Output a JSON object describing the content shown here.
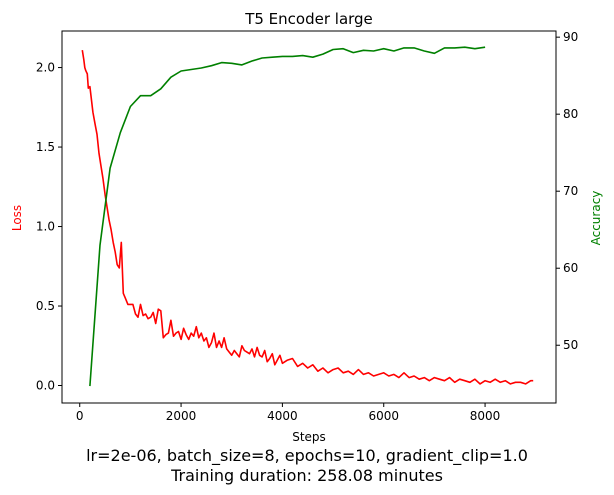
{
  "chart_data": {
    "type": "line",
    "title": "T5 Encoder large",
    "xlabel": "Steps",
    "ylabel": "Loss",
    "y2label": "Accuracy",
    "xlim": [
      -350,
      9400
    ],
    "ylim": [
      -0.11,
      2.23
    ],
    "y2lim": [
      42.5,
      90.8
    ],
    "xticks": [
      0,
      2000,
      4000,
      6000,
      8000
    ],
    "yticks": [
      0.0,
      0.5,
      1.0,
      1.5,
      2.0
    ],
    "y2ticks": [
      50,
      60,
      70,
      80,
      90
    ],
    "grid": false,
    "series": [
      {
        "name": "Loss",
        "axis": "left",
        "color": "#ff0000",
        "x": [
          50,
          80,
          100,
          120,
          150,
          170,
          200,
          230,
          260,
          300,
          340,
          380,
          420,
          460,
          500,
          540,
          580,
          620,
          660,
          700,
          740,
          780,
          820,
          860,
          900,
          950,
          1000,
          1050,
          1100,
          1150,
          1200,
          1250,
          1300,
          1350,
          1400,
          1450,
          1500,
          1550,
          1600,
          1650,
          1700,
          1750,
          1800,
          1850,
          1900,
          1950,
          2000,
          2050,
          2100,
          2150,
          2200,
          2250,
          2300,
          2350,
          2400,
          2450,
          2500,
          2550,
          2600,
          2650,
          2700,
          2750,
          2800,
          2850,
          2900,
          2950,
          3000,
          3050,
          3100,
          3150,
          3200,
          3250,
          3300,
          3350,
          3400,
          3450,
          3500,
          3550,
          3600,
          3650,
          3700,
          3750,
          3800,
          3850,
          3900,
          3950,
          4000,
          4100,
          4200,
          4300,
          4400,
          4500,
          4600,
          4700,
          4800,
          4900,
          5000,
          5100,
          5200,
          5300,
          5400,
          5500,
          5600,
          5700,
          5800,
          5900,
          6000,
          6100,
          6200,
          6300,
          6400,
          6500,
          6600,
          6700,
          6800,
          6900,
          7000,
          7100,
          7200,
          7300,
          7400,
          7500,
          7600,
          7700,
          7800,
          7900,
          8000,
          8100,
          8200,
          8300,
          8400,
          8500,
          8600,
          8700,
          8800,
          8900,
          8950
        ],
        "values": [
          2.11,
          2.05,
          2.0,
          1.98,
          1.96,
          1.87,
          1.88,
          1.8,
          1.72,
          1.65,
          1.58,
          1.46,
          1.38,
          1.3,
          1.2,
          1.12,
          1.04,
          0.98,
          0.9,
          0.84,
          0.76,
          0.74,
          0.9,
          0.58,
          0.55,
          0.51,
          0.51,
          0.51,
          0.45,
          0.43,
          0.51,
          0.44,
          0.45,
          0.42,
          0.43,
          0.46,
          0.39,
          0.48,
          0.47,
          0.3,
          0.32,
          0.33,
          0.41,
          0.31,
          0.33,
          0.34,
          0.29,
          0.36,
          0.32,
          0.29,
          0.33,
          0.31,
          0.37,
          0.3,
          0.33,
          0.28,
          0.3,
          0.24,
          0.27,
          0.33,
          0.24,
          0.28,
          0.24,
          0.3,
          0.23,
          0.21,
          0.19,
          0.22,
          0.2,
          0.18,
          0.25,
          0.22,
          0.21,
          0.2,
          0.23,
          0.18,
          0.24,
          0.19,
          0.18,
          0.22,
          0.15,
          0.17,
          0.2,
          0.13,
          0.16,
          0.19,
          0.14,
          0.16,
          0.17,
          0.12,
          0.14,
          0.11,
          0.13,
          0.09,
          0.11,
          0.08,
          0.1,
          0.11,
          0.08,
          0.09,
          0.07,
          0.1,
          0.07,
          0.08,
          0.06,
          0.07,
          0.08,
          0.06,
          0.07,
          0.05,
          0.08,
          0.05,
          0.06,
          0.04,
          0.05,
          0.03,
          0.05,
          0.04,
          0.03,
          0.05,
          0.02,
          0.04,
          0.03,
          0.02,
          0.04,
          0.01,
          0.03,
          0.02,
          0.04,
          0.02,
          0.03,
          0.01,
          0.02,
          0.02,
          0.01,
          0.03,
          0.03
        ]
      },
      {
        "name": "Accuracy",
        "axis": "right",
        "color": "#008000",
        "x": [
          200,
          400,
          600,
          800,
          1000,
          1200,
          1400,
          1600,
          1800,
          2000,
          2200,
          2400,
          2600,
          2800,
          3000,
          3200,
          3400,
          3600,
          3800,
          4000,
          4200,
          4400,
          4600,
          4800,
          5000,
          5200,
          5400,
          5600,
          5800,
          6000,
          6200,
          6400,
          6600,
          6800,
          7000,
          7200,
          7400,
          7600,
          7800,
          8000
        ],
        "values": [
          44.7,
          63.0,
          73.0,
          77.6,
          81.0,
          82.4,
          82.4,
          83.3,
          84.8,
          85.6,
          85.8,
          86.0,
          86.3,
          86.7,
          86.6,
          86.4,
          86.9,
          87.3,
          87.4,
          87.5,
          87.5,
          87.6,
          87.4,
          87.8,
          88.4,
          88.5,
          88.0,
          88.3,
          88.2,
          88.5,
          88.2,
          88.6,
          88.6,
          88.2,
          87.9,
          88.6,
          88.6,
          88.7,
          88.5,
          88.7
        ]
      }
    ]
  },
  "caption": {
    "line1": "lr=2e-06, batch_size=8, epochs=10, gradient_clip=1.0",
    "line2": "Training duration: 258.08 minutes"
  }
}
